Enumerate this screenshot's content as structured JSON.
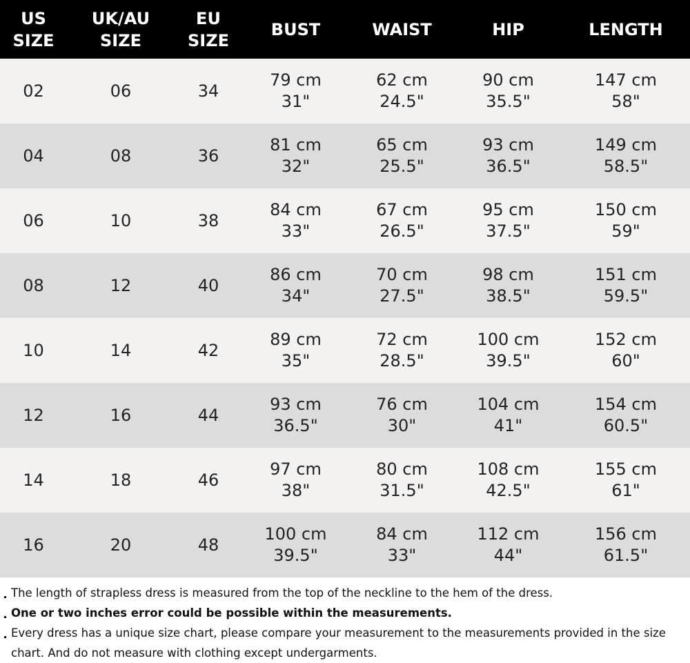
{
  "table": {
    "header": [
      [
        "US",
        "SIZE"
      ],
      [
        "UK/AU",
        "SIZE"
      ],
      [
        "EU",
        "SIZE"
      ],
      [
        "BUST"
      ],
      [
        "WAIST"
      ],
      [
        "HIP"
      ],
      [
        "LENGTH"
      ]
    ],
    "rows": [
      [
        "02",
        "06",
        "34",
        [
          "79 cm",
          "31\""
        ],
        [
          "62 cm",
          "24.5\""
        ],
        [
          "90 cm",
          "35.5\""
        ],
        [
          "147 cm",
          "58\""
        ]
      ],
      [
        "04",
        "08",
        "36",
        [
          "81 cm",
          "32\""
        ],
        [
          "65 cm",
          "25.5\""
        ],
        [
          "93 cm",
          "36.5\""
        ],
        [
          "149 cm",
          "58.5\""
        ]
      ],
      [
        "06",
        "10",
        "38",
        [
          "84 cm",
          "33\""
        ],
        [
          "67 cm",
          "26.5\""
        ],
        [
          "95 cm",
          "37.5\""
        ],
        [
          "150 cm",
          "59\""
        ]
      ],
      [
        "08",
        "12",
        "40",
        [
          "86 cm",
          "34\""
        ],
        [
          "70 cm",
          "27.5\""
        ],
        [
          "98 cm",
          "38.5\""
        ],
        [
          "151 cm",
          "59.5\""
        ]
      ],
      [
        "10",
        "14",
        "42",
        [
          "89 cm",
          "35\""
        ],
        [
          "72 cm",
          "28.5\""
        ],
        [
          "100 cm",
          "39.5\""
        ],
        [
          "152 cm",
          "60\""
        ]
      ],
      [
        "12",
        "16",
        "44",
        [
          "93 cm",
          "36.5\""
        ],
        [
          "76 cm",
          "30\""
        ],
        [
          "104 cm",
          "41\""
        ],
        [
          "154 cm",
          "60.5\""
        ]
      ],
      [
        "14",
        "18",
        "46",
        [
          "97 cm",
          "38\""
        ],
        [
          "80 cm",
          "31.5\""
        ],
        [
          "108 cm",
          "42.5\""
        ],
        [
          "155 cm",
          "61\""
        ]
      ],
      [
        "16",
        "20",
        "48",
        [
          "100 cm",
          "39.5\""
        ],
        [
          "84 cm",
          "33\""
        ],
        [
          "112 cm",
          "44\""
        ],
        [
          "156 cm",
          "61.5\""
        ]
      ]
    ]
  },
  "notes": [
    {
      "text": "The length of strapless dress is measured from the top of the neckline to the hem of the dress.",
      "bold": false
    },
    {
      "text": "One or two inches error could be possible within the measurements.",
      "bold": true
    },
    {
      "text": "Every dress has a unique size chart, please compare your measurement to the measurements provided in the size chart. And do not measure with clothing except undergarments.",
      "bold": false
    }
  ]
}
